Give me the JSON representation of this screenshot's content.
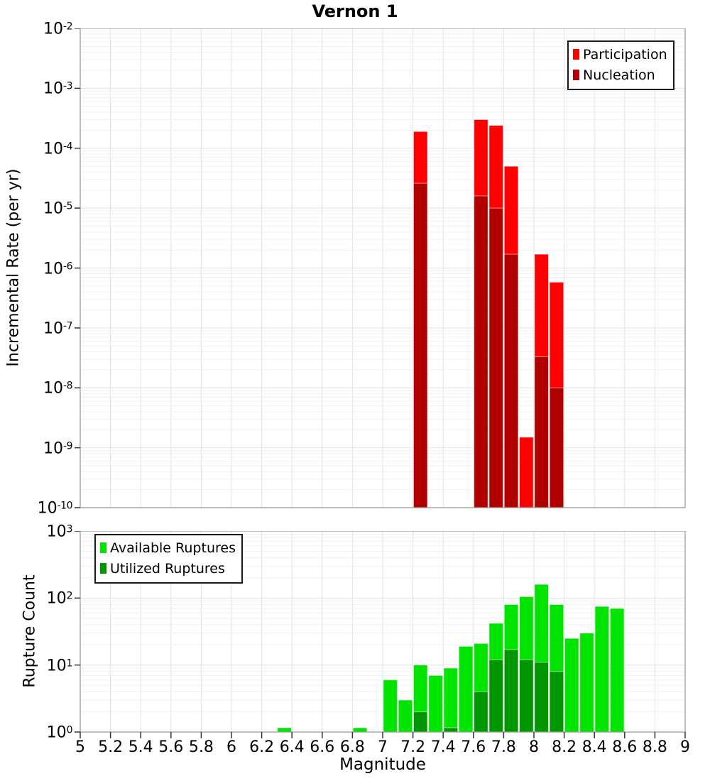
{
  "title": "Vernon 1",
  "xlabel": "Magnitude",
  "colors": {
    "participation": "#FF0000",
    "nucleation": "#B00000",
    "available": "#00E400",
    "utilized": "#009600",
    "grid_major": "#E2E2E2",
    "grid_minor": "#F1F1F1",
    "frame": "#9A9A9A",
    "tick": "#333333"
  },
  "chart_data": [
    {
      "type": "bar",
      "title": "Vernon 1",
      "ylabel": "Incremental Rate (per yr)",
      "xlabel": "Magnitude",
      "y_scale": "log",
      "x_range": [
        5,
        9
      ],
      "y_exponent_range": [
        -10,
        -2
      ],
      "y_tick_exponents": [
        -2,
        -3,
        -4,
        -5,
        -6,
        -7,
        -8,
        -9,
        -10
      ],
      "x_tick_values": [
        5,
        5.2,
        5.4,
        5.6,
        5.8,
        6,
        6.2,
        6.4,
        6.6,
        6.8,
        7,
        7.2,
        7.4,
        7.6,
        7.8,
        8,
        8.2,
        8.4,
        8.6,
        8.8,
        9
      ],
      "x_tick_labels": [
        "5",
        "5.2",
        "5.4",
        "5.6",
        "5.8",
        "6",
        "6.2",
        "6.4",
        "6.6",
        "6.8",
        "7",
        "7.2",
        "7.4",
        "7.6",
        "7.8",
        "8",
        "8.2",
        "8.4",
        "8.6",
        "8.8",
        "9"
      ],
      "bin_width": 0.1,
      "legend_position": "top-right",
      "series": [
        {
          "name": "Participation",
          "color": "#FF0000",
          "points": [
            {
              "x": 7.25,
              "y": 0.00019
            },
            {
              "x": 7.65,
              "y": 0.0003
            },
            {
              "x": 7.75,
              "y": 0.00024
            },
            {
              "x": 7.85,
              "y": 5e-05
            },
            {
              "x": 7.95,
              "y": 1.5e-09
            },
            {
              "x": 8.05,
              "y": 1.7e-06
            },
            {
              "x": 8.15,
              "y": 5.8e-07
            }
          ]
        },
        {
          "name": "Nucleation",
          "color": "#B00000",
          "points": [
            {
              "x": 7.25,
              "y": 2.6e-05
            },
            {
              "x": 7.65,
              "y": 1.6e-05
            },
            {
              "x": 7.75,
              "y": 1e-05
            },
            {
              "x": 7.85,
              "y": 1.7e-06
            },
            {
              "x": 8.05,
              "y": 3.3e-08
            },
            {
              "x": 8.15,
              "y": 1e-08
            }
          ]
        }
      ]
    },
    {
      "type": "bar",
      "title": "",
      "ylabel": "Rupture Count",
      "xlabel": "Magnitude",
      "y_scale": "log",
      "x_range": [
        5,
        9
      ],
      "y_exponent_range": [
        0,
        3
      ],
      "y_tick_exponents": [
        3,
        2,
        1,
        0
      ],
      "x_tick_values": [
        5,
        5.2,
        5.4,
        5.6,
        5.8,
        6,
        6.2,
        6.4,
        6.6,
        6.8,
        7,
        7.2,
        7.4,
        7.6,
        7.8,
        8,
        8.2,
        8.4,
        8.6,
        8.8,
        9
      ],
      "x_tick_labels": [
        "5",
        "5.2",
        "5.4",
        "5.6",
        "5.8",
        "6",
        "6.2",
        "6.4",
        "6.6",
        "6.8",
        "7",
        "7.2",
        "7.4",
        "7.6",
        "7.8",
        "8",
        "8.2",
        "8.4",
        "8.6",
        "8.8",
        "9"
      ],
      "bin_width": 0.1,
      "legend_position": "top-left",
      "series": [
        {
          "name": "Available Ruptures",
          "color": "#00E400",
          "points": [
            {
              "x": 6.35,
              "y": 1
            },
            {
              "x": 6.85,
              "y": 1
            },
            {
              "x": 7.05,
              "y": 6
            },
            {
              "x": 7.15,
              "y": 3
            },
            {
              "x": 7.25,
              "y": 10
            },
            {
              "x": 7.35,
              "y": 7
            },
            {
              "x": 7.45,
              "y": 9
            },
            {
              "x": 7.55,
              "y": 19
            },
            {
              "x": 7.65,
              "y": 21
            },
            {
              "x": 7.75,
              "y": 42
            },
            {
              "x": 7.85,
              "y": 80
            },
            {
              "x": 7.95,
              "y": 105
            },
            {
              "x": 8.05,
              "y": 160
            },
            {
              "x": 8.15,
              "y": 80
            },
            {
              "x": 8.25,
              "y": 25
            },
            {
              "x": 8.35,
              "y": 30
            },
            {
              "x": 8.45,
              "y": 75
            },
            {
              "x": 8.55,
              "y": 70
            }
          ]
        },
        {
          "name": "Utilized Ruptures",
          "color": "#009600",
          "points": [
            {
              "x": 7.25,
              "y": 2
            },
            {
              "x": 7.45,
              "y": 1
            },
            {
              "x": 7.65,
              "y": 4
            },
            {
              "x": 7.75,
              "y": 12
            },
            {
              "x": 7.85,
              "y": 17
            },
            {
              "x": 7.95,
              "y": 12
            },
            {
              "x": 8.05,
              "y": 11
            },
            {
              "x": 8.15,
              "y": 8
            }
          ]
        }
      ]
    }
  ]
}
